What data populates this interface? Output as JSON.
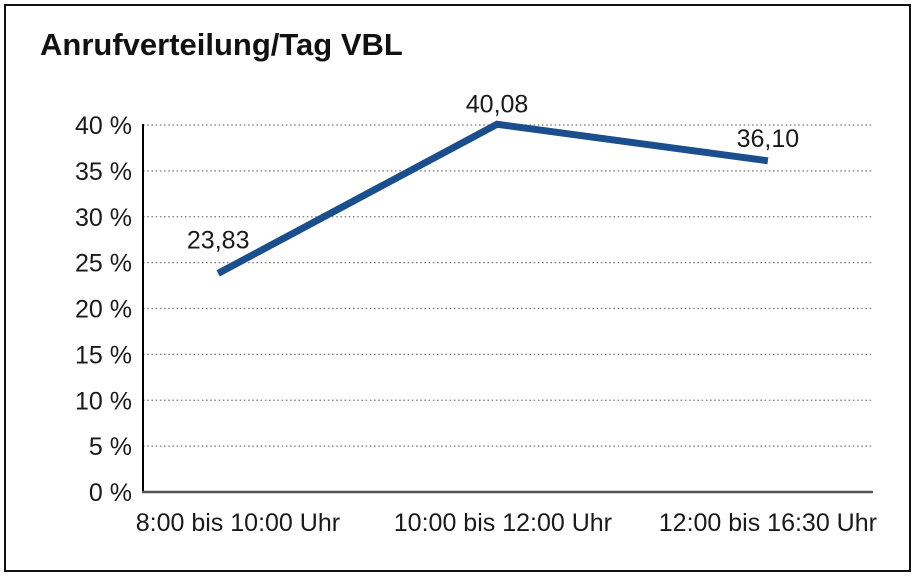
{
  "window": {
    "background_color": "#ffffff",
    "border_color": "#111111"
  },
  "chart_data": {
    "type": "line",
    "title": "Anrufverteilung/Tag VBL",
    "categories": [
      "8:00 bis 10:00 Uhr",
      "10:00 bis 12:00 Uhr",
      "12:00 bis 16:30 Uhr"
    ],
    "values": [
      23.83,
      40.08,
      36.1
    ],
    "point_labels": [
      "23,83",
      "40,08",
      "36,10"
    ],
    "xlabel": "",
    "ylabel": "",
    "ylim": [
      0,
      40
    ],
    "ytick_step": 5,
    "ytick_values": [
      0,
      5,
      10,
      15,
      20,
      25,
      30,
      35,
      40
    ],
    "ytick_labels": [
      "0 %",
      "5 %",
      "10 %",
      "15 %",
      "20 %",
      "25 %",
      "30 %",
      "35 %",
      "40 %"
    ],
    "grid": "horizontal-dotted",
    "legend_position": "none",
    "line_color": "#1b4e8c",
    "gridline_color": "#7a7a7a",
    "yaxis_color": "#000000",
    "xaxis_color": "#555555",
    "label_color": "#1a1a1a"
  }
}
